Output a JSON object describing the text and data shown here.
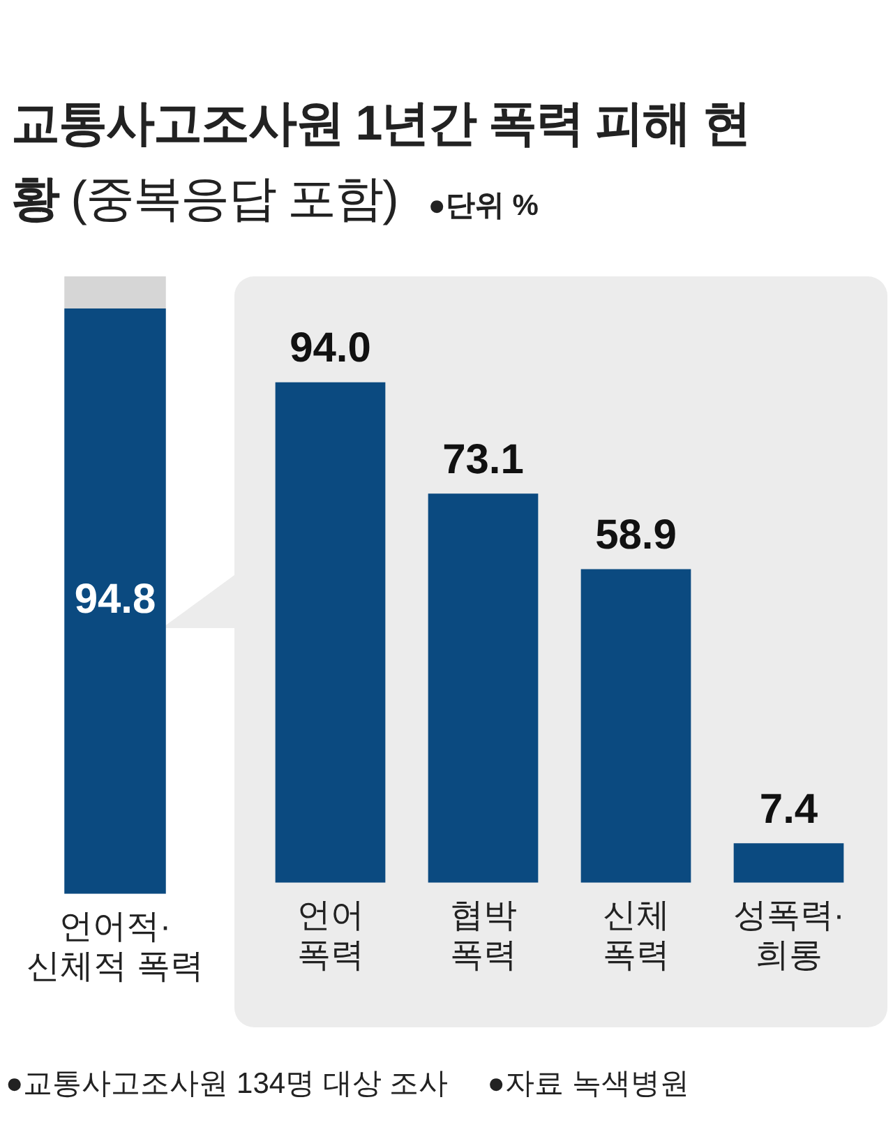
{
  "chart_data": [
    {
      "type": "bar",
      "title": "교통사고조사원 1년간 폭력 피해 현황",
      "subtitle": "(중복응답 포함)",
      "annotations": [
        "●단위 %",
        "●교통사고조사원 134명 대상 조사",
        "●자료 녹색병원"
      ],
      "categories": [
        "언어적·\n신체적 폭력"
      ],
      "stacked": true,
      "tick_labels": "x",
      "legend": false,
      "series": [
        {
          "color": "#0b4a80",
          "values": [
            94.8
          ],
          "value_labels": [
            "94.8"
          ]
        },
        {
          "color": "#d6d6d6",
          "values": [
            5.2
          ],
          "value_labels": [
            null
          ]
        }
      ]
    },
    {
      "type": "bar",
      "categories": [
        "언어\n폭력",
        "협박\n폭력",
        "신체\n폭력",
        "성폭력·\n희롱"
      ],
      "tick_labels": "x",
      "legend": false,
      "series": [
        {
          "color": "#0b4a80",
          "values": [
            94.0,
            73.1,
            58.9,
            7.4
          ],
          "value_labels": [
            "94.0",
            "73.1",
            "58.9",
            "7.4"
          ]
        }
      ]
    }
  ]
}
